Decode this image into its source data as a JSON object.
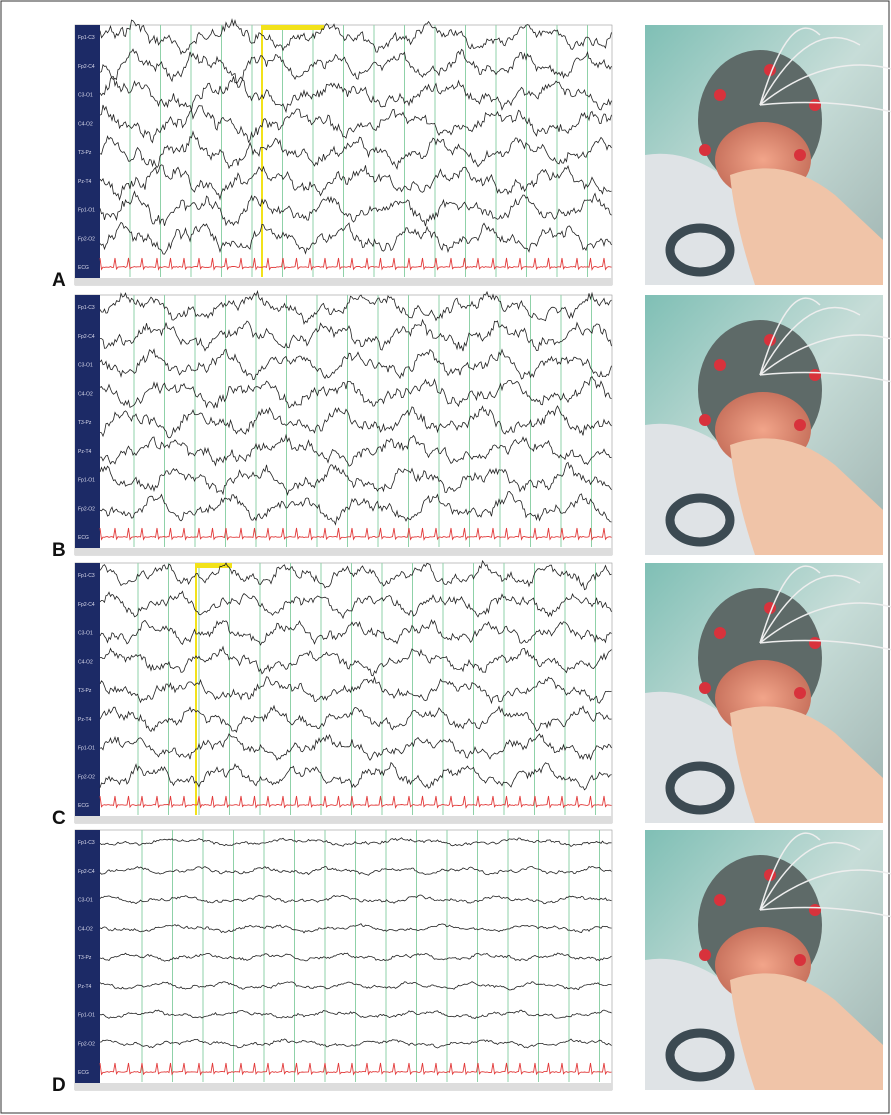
{
  "panels": [
    {
      "label": "A",
      "channels": [
        "Fp1-C3",
        "Fp2-C4",
        "C3-O1",
        "C4-O2",
        "T3-Pz",
        "Pz-T4",
        "Fp1-O1",
        "Fp2-O2",
        "ECG"
      ]
    },
    {
      "label": "B",
      "channels": [
        "Fp1-C3",
        "Fp2-C4",
        "C3-O1",
        "C4-O2",
        "T3-Pz",
        "Pz-T4",
        "Fp1-O1",
        "Fp2-O2",
        "ECG"
      ]
    },
    {
      "label": "C",
      "channels": [
        "Fp1-C3",
        "Fp2-C4",
        "C3-O1",
        "C4-O2",
        "T3-Pz",
        "Pz-T4",
        "Fp1-O1",
        "Fp2-O2",
        "ECG"
      ]
    },
    {
      "label": "D",
      "channels": [
        "Fp1-C3",
        "Fp2-C4",
        "C3-O1",
        "C4-O2",
        "T3-Pz",
        "Pz-T4",
        "Fp1-O1",
        "Fp2-O2",
        "ECG"
      ]
    }
  ]
}
